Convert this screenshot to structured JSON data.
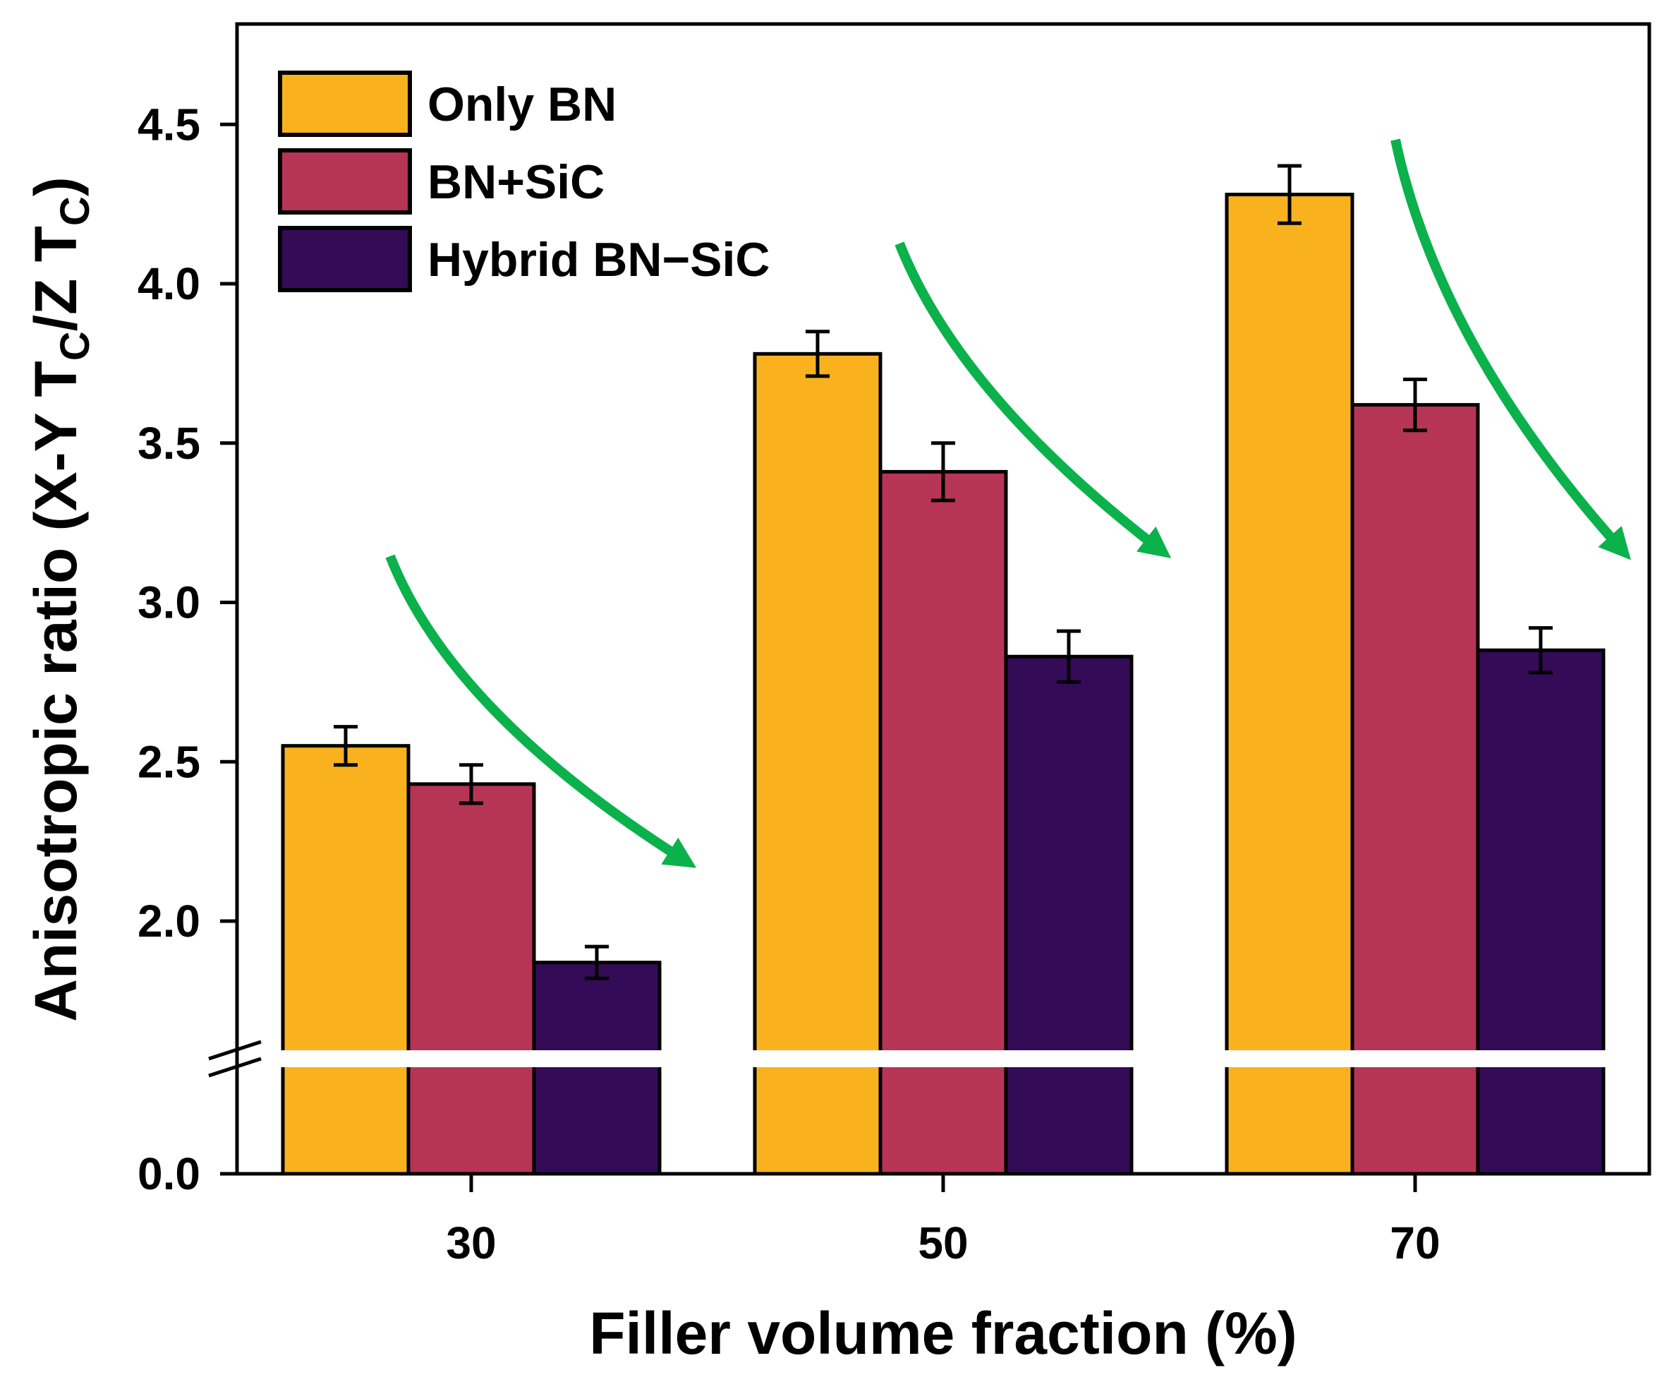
{
  "chart_data": {
    "type": "bar",
    "title": "",
    "xlabel": "Filler volume fraction (%)",
    "ylabel": {
      "main": "Anisotropic ratio (X-Y T",
      "sub1": "C",
      "mid": "/Z T",
      "sub2": "C",
      "end": ")"
    },
    "categories": [
      "30",
      "50",
      "70"
    ],
    "series": [
      {
        "name": "Only BN",
        "color": "#F9B21E",
        "values": [
          2.55,
          3.78,
          4.28
        ],
        "errors": [
          0.06,
          0.07,
          0.09
        ]
      },
      {
        "name": "BN+SiC",
        "color": "#B63555",
        "values": [
          2.43,
          3.41,
          3.62
        ],
        "errors": [
          0.06,
          0.09,
          0.08
        ]
      },
      {
        "name": "Hybrid BN−SiC",
        "color": "#340B57",
        "values": [
          1.87,
          2.83,
          2.85
        ],
        "errors": [
          0.05,
          0.08,
          0.07
        ]
      }
    ],
    "y_ticks": [
      {
        "value": 0.0,
        "label": "0.0"
      },
      {
        "value": 2.0,
        "label": "2.0"
      },
      {
        "value": 2.5,
        "label": "2.5"
      },
      {
        "value": 3.0,
        "label": "3.0"
      },
      {
        "value": 3.5,
        "label": "3.5"
      },
      {
        "value": 4.0,
        "label": "4.0"
      },
      {
        "value": 4.5,
        "label": "4.5"
      }
    ],
    "axis_break": {
      "lower_range": [
        0.0,
        1.5
      ],
      "upper_range": [
        1.5,
        4.8
      ]
    },
    "legend_position": "top-left",
    "annotations": "Green arrows over each group indicating a decreasing trend from Only BN to Hybrid BN−SiC",
    "arrow_color": "#0BB14B"
  }
}
